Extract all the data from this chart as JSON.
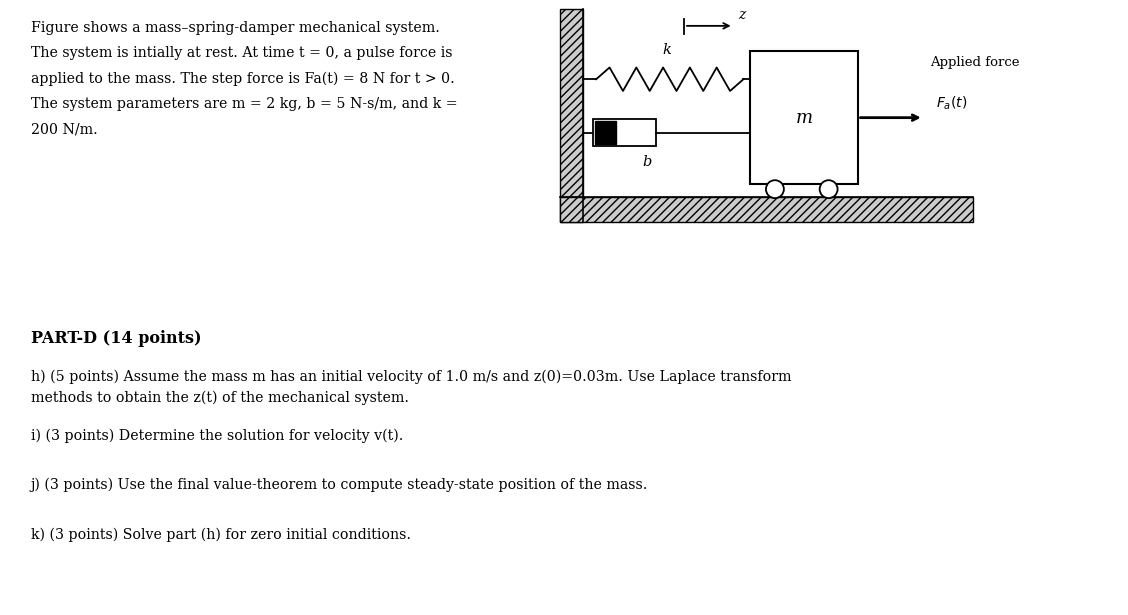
{
  "bg_color": "#ffffff",
  "text_color": "#000000",
  "intro_text_lines": [
    "Figure shows a mass–spring-damper mechanical system.",
    "The system is intially at rest. At time t = 0, a pulse force is",
    "applied to the mass. The step force is Fa(t) = 8 N for t > 0.",
    "The system parameters are m = 2 kg, b = 5 N-s/m, and k =",
    "200 N/m."
  ],
  "part_d_header": "PART-D (14 points)",
  "questions": [
    "h) (5 points) Assume the mass m has an initial velocity of 1.0 m/s and z(0)=0.03m. Use Laplace transform\nmethods to obtain the z(t) of the mechanical system.",
    "i) (3 points) Determine the solution for velocity v(t).",
    "j) (3 points) Use the final value-theorem to compute steady-state position of the mass.",
    "k) (3 points) Solve part (h) for zero initial conditions."
  ]
}
